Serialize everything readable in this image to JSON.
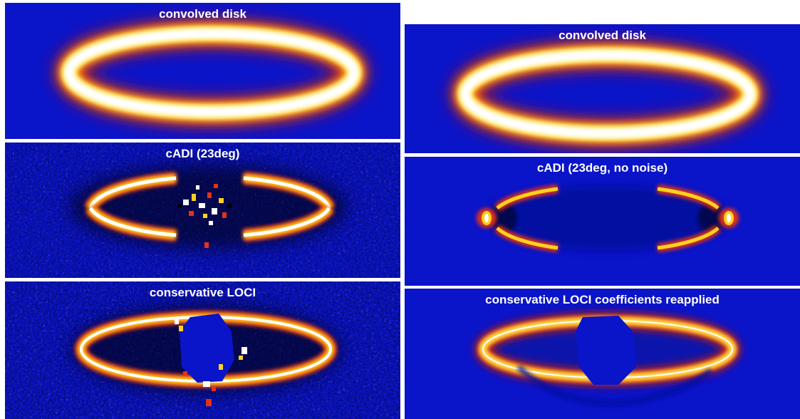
{
  "panels": {
    "left_top": {
      "label": "convolved disk"
    },
    "left_middle": {
      "label": "cADI (23deg)"
    },
    "left_bottom": {
      "label": "conservative LOCI"
    },
    "right_top": {
      "label": "convolved disk"
    },
    "right_middle": {
      "label": "cADI (23deg, no noise)"
    },
    "right_bottom": {
      "label": "conservative LOCI coefficients reapplied"
    }
  },
  "colors": {
    "background": "#0a14c8",
    "ring_core": "#ffffff",
    "ring_mid": "#ffd21e",
    "ring_outer": "#e63214",
    "residual_dark": "#000000"
  }
}
